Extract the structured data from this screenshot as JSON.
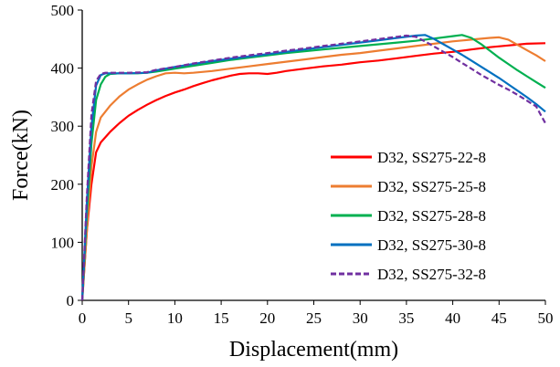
{
  "chart_data": {
    "type": "line",
    "title": "",
    "xlabel": "Displacement(mm)",
    "ylabel": "Force(kN)",
    "xlim": [
      0,
      50
    ],
    "ylim": [
      0,
      500
    ],
    "xticks": [
      0,
      5,
      10,
      15,
      20,
      25,
      30,
      35,
      40,
      45,
      50
    ],
    "yticks": [
      0,
      100,
      200,
      300,
      400,
      500
    ],
    "grid": false,
    "legend_position": "right",
    "series": [
      {
        "name": "D32, SS275-22-8",
        "color": "#ff0000",
        "dash": "solid",
        "points": [
          [
            0,
            0
          ],
          [
            0.5,
            120
          ],
          [
            1,
            200
          ],
          [
            1.5,
            255
          ],
          [
            2,
            272
          ],
          [
            3,
            290
          ],
          [
            4,
            305
          ],
          [
            5,
            318
          ],
          [
            6,
            328
          ],
          [
            7,
            337
          ],
          [
            8,
            345
          ],
          [
            9,
            352
          ],
          [
            10,
            358
          ],
          [
            11,
            363
          ],
          [
            12,
            369
          ],
          [
            13,
            374
          ],
          [
            14,
            379
          ],
          [
            15,
            383
          ],
          [
            16,
            387
          ],
          [
            17,
            390
          ],
          [
            18,
            391
          ],
          [
            19,
            391
          ],
          [
            20,
            390
          ],
          [
            21,
            392
          ],
          [
            22,
            395
          ],
          [
            24,
            399
          ],
          [
            26,
            403
          ],
          [
            28,
            406
          ],
          [
            30,
            410
          ],
          [
            32,
            413
          ],
          [
            34,
            417
          ],
          [
            36,
            421
          ],
          [
            38,
            425
          ],
          [
            40,
            428
          ],
          [
            42,
            432
          ],
          [
            44,
            436
          ],
          [
            46,
            439
          ],
          [
            48,
            442
          ],
          [
            50,
            443
          ]
        ]
      },
      {
        "name": "D32, SS275-25-8",
        "color": "#ed7d31",
        "dash": "solid",
        "points": [
          [
            0,
            0
          ],
          [
            0.5,
            120
          ],
          [
            1,
            230
          ],
          [
            1.5,
            290
          ],
          [
            2,
            315
          ],
          [
            3,
            335
          ],
          [
            4,
            351
          ],
          [
            5,
            363
          ],
          [
            6,
            372
          ],
          [
            7,
            380
          ],
          [
            8,
            386
          ],
          [
            9,
            391
          ],
          [
            10,
            392
          ],
          [
            11,
            391
          ],
          [
            12,
            392
          ],
          [
            14,
            395
          ],
          [
            16,
            399
          ],
          [
            18,
            403
          ],
          [
            20,
            407
          ],
          [
            22,
            411
          ],
          [
            24,
            415
          ],
          [
            26,
            419
          ],
          [
            28,
            423
          ],
          [
            30,
            426
          ],
          [
            32,
            430
          ],
          [
            34,
            434
          ],
          [
            36,
            438
          ],
          [
            38,
            442
          ],
          [
            40,
            446
          ],
          [
            42,
            449
          ],
          [
            44,
            452
          ],
          [
            45,
            453
          ],
          [
            46,
            449
          ],
          [
            47,
            440
          ],
          [
            48,
            431
          ],
          [
            49,
            422
          ],
          [
            50,
            412
          ]
        ]
      },
      {
        "name": "D32, SS275-28-8",
        "color": "#00b050",
        "dash": "solid",
        "points": [
          [
            0,
            0
          ],
          [
            0.5,
            150
          ],
          [
            1,
            270
          ],
          [
            1.5,
            345
          ],
          [
            2,
            372
          ],
          [
            2.5,
            385
          ],
          [
            3,
            390
          ],
          [
            4,
            391
          ],
          [
            5,
            391
          ],
          [
            6,
            391
          ],
          [
            7,
            392
          ],
          [
            8,
            394
          ],
          [
            10,
            399
          ],
          [
            12,
            404
          ],
          [
            14,
            409
          ],
          [
            16,
            414
          ],
          [
            18,
            418
          ],
          [
            20,
            422
          ],
          [
            22,
            426
          ],
          [
            24,
            429
          ],
          [
            26,
            432
          ],
          [
            28,
            435
          ],
          [
            30,
            438
          ],
          [
            32,
            441
          ],
          [
            34,
            444
          ],
          [
            36,
            447
          ],
          [
            38,
            451
          ],
          [
            40,
            455
          ],
          [
            41,
            457
          ],
          [
            42,
            452
          ],
          [
            43,
            442
          ],
          [
            44,
            430
          ],
          [
            45,
            418
          ],
          [
            46,
            407
          ],
          [
            47,
            396
          ],
          [
            48,
            386
          ],
          [
            49,
            376
          ],
          [
            50,
            366
          ]
        ]
      },
      {
        "name": "D32, SS275-30-8",
        "color": "#0070c0",
        "dash": "solid",
        "points": [
          [
            0,
            0
          ],
          [
            0.5,
            170
          ],
          [
            1,
            300
          ],
          [
            1.5,
            370
          ],
          [
            2,
            388
          ],
          [
            2.5,
            391
          ],
          [
            3,
            391
          ],
          [
            5,
            391
          ],
          [
            7,
            392
          ],
          [
            8,
            396
          ],
          [
            10,
            402
          ],
          [
            12,
            407
          ],
          [
            14,
            412
          ],
          [
            16,
            416
          ],
          [
            18,
            420
          ],
          [
            20,
            424
          ],
          [
            22,
            428
          ],
          [
            24,
            432
          ],
          [
            26,
            436
          ],
          [
            28,
            440
          ],
          [
            30,
            444
          ],
          [
            32,
            448
          ],
          [
            34,
            452
          ],
          [
            35,
            454
          ],
          [
            36,
            456
          ],
          [
            37,
            457
          ],
          [
            38,
            450
          ],
          [
            39,
            441
          ],
          [
            40,
            432
          ],
          [
            41,
            423
          ],
          [
            42,
            413
          ],
          [
            43,
            403
          ],
          [
            44,
            393
          ],
          [
            45,
            383
          ],
          [
            46,
            372
          ],
          [
            47,
            361
          ],
          [
            48,
            350
          ],
          [
            49,
            338
          ],
          [
            50,
            325
          ]
        ]
      },
      {
        "name": "D32, SS275-32-8",
        "color": "#7030a0",
        "dash": "dashed",
        "points": [
          [
            0,
            0
          ],
          [
            0.5,
            180
          ],
          [
            1,
            320
          ],
          [
            1.5,
            378
          ],
          [
            2,
            390
          ],
          [
            2.5,
            392
          ],
          [
            3,
            392
          ],
          [
            5,
            392
          ],
          [
            7,
            393
          ],
          [
            8,
            397
          ],
          [
            10,
            402
          ],
          [
            12,
            408
          ],
          [
            14,
            413
          ],
          [
            16,
            418
          ],
          [
            18,
            422
          ],
          [
            20,
            426
          ],
          [
            22,
            430
          ],
          [
            24,
            434
          ],
          [
            26,
            438
          ],
          [
            28,
            442
          ],
          [
            30,
            446
          ],
          [
            32,
            450
          ],
          [
            34,
            454
          ],
          [
            35,
            456
          ],
          [
            36,
            454
          ],
          [
            37,
            446
          ],
          [
            38,
            437
          ],
          [
            39,
            428
          ],
          [
            40,
            419
          ],
          [
            41,
            409
          ],
          [
            42,
            399
          ],
          [
            43,
            389
          ],
          [
            44,
            380
          ],
          [
            45,
            371
          ],
          [
            46,
            363
          ],
          [
            47,
            354
          ],
          [
            48,
            344
          ],
          [
            49,
            334
          ],
          [
            50,
            305
          ]
        ]
      }
    ]
  }
}
